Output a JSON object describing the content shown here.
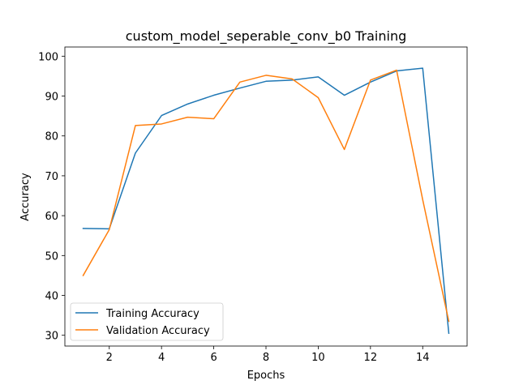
{
  "chart_data": {
    "type": "line",
    "title": "custom_model_seperable_conv_b0 Training",
    "xlabel": "Epochs",
    "ylabel": "Accuracy",
    "x": [
      1,
      2,
      3,
      4,
      5,
      6,
      7,
      8,
      9,
      10,
      11,
      12,
      13,
      14,
      15
    ],
    "xlim": [
      0.3,
      15.7
    ],
    "ylim": [
      27.3,
      102.3
    ],
    "xticks": [
      2,
      4,
      6,
      8,
      10,
      12,
      14
    ],
    "yticks": [
      30,
      40,
      50,
      60,
      70,
      80,
      90,
      100
    ],
    "grid": false,
    "legend_position": "lower-left",
    "series": [
      {
        "name": "Training Accuracy",
        "color": "#1f77b4",
        "values": [
          56.8,
          56.7,
          75.7,
          85.1,
          88.0,
          90.2,
          92.0,
          93.7,
          94.0,
          94.8,
          90.2,
          93.5,
          96.3,
          97.0,
          30.5
        ]
      },
      {
        "name": "Validation Accuracy",
        "color": "#ff7f0e",
        "values": [
          45.0,
          56.5,
          82.6,
          83.0,
          84.7,
          84.3,
          93.5,
          95.2,
          94.3,
          89.6,
          76.6,
          94.0,
          96.5,
          64.0,
          33.5
        ]
      }
    ]
  }
}
